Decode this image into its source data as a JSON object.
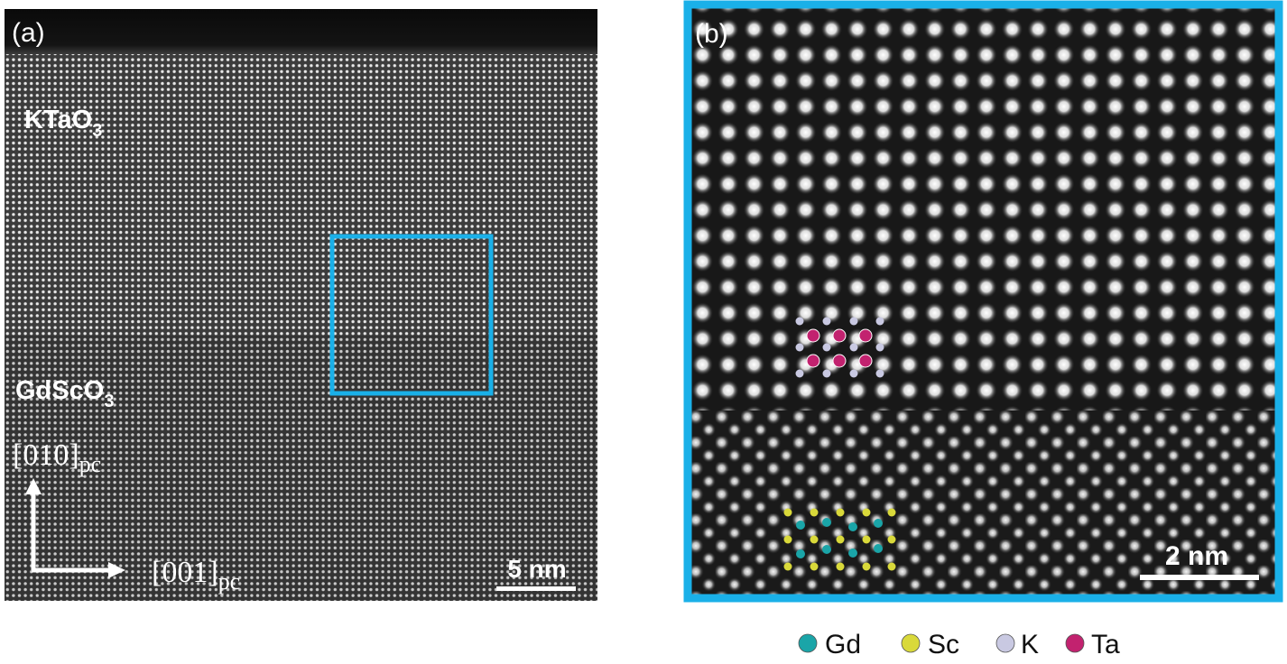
{
  "panel_a": {
    "label": "(a)",
    "film": {
      "main": "KTaO",
      "sub": "3"
    },
    "substrate": {
      "main": "GdScO",
      "sub": "3"
    },
    "axis_vertical": {
      "main": "[010]",
      "sub": "pc"
    },
    "axis_horizontal": {
      "main": "[001]",
      "sub": "pc"
    },
    "scale_bar": "5 nm"
  },
  "panel_b": {
    "label": "(b)",
    "scale_bar": "2 nm"
  },
  "legend": [
    {
      "name": "Gd",
      "color": "#1aa5a8"
    },
    {
      "name": "Sc",
      "color": "#d9d93a"
    },
    {
      "name": "K",
      "color": "#c9c9e2"
    },
    {
      "name": "Ta",
      "color": "#c2226f"
    }
  ]
}
